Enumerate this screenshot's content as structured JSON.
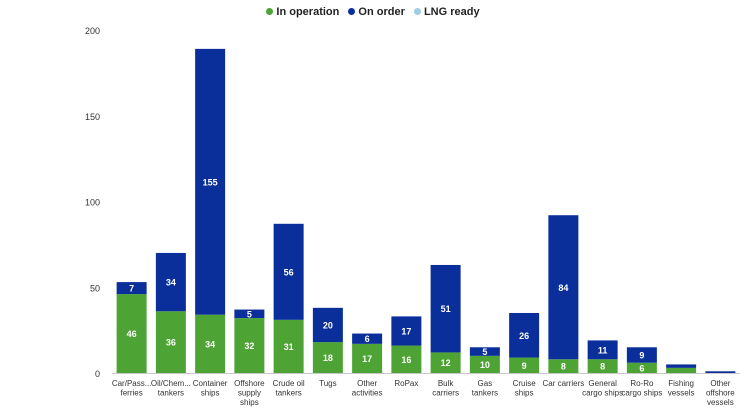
{
  "chart_data": {
    "type": "bar",
    "stacked": true,
    "title": "",
    "xlabel": "",
    "ylabel": "",
    "ylim": [
      0,
      200
    ],
    "yticks": [
      0,
      50,
      100,
      150,
      200
    ],
    "grid": false,
    "legend_position": "top-center",
    "categories": [
      [
        "Car/Pass...",
        "ferries"
      ],
      [
        "Oil/Chem...",
        "tankers"
      ],
      [
        "Container",
        "ships"
      ],
      [
        "Offshore",
        "supply",
        "ships"
      ],
      [
        "Crude oil",
        "tankers"
      ],
      [
        "Tugs"
      ],
      [
        "Other",
        "activities"
      ],
      [
        "RoPax"
      ],
      [
        "Bulk",
        "carriers"
      ],
      [
        "Gas",
        "tankers"
      ],
      [
        "Cruise",
        "ships"
      ],
      [
        "Car carriers"
      ],
      [
        "General",
        "cargo ships"
      ],
      [
        "Ro-Ro",
        "cargo ships"
      ],
      [
        "Fishing",
        "vessels"
      ],
      [
        "Other",
        "offshore",
        "vessels"
      ]
    ],
    "series": [
      {
        "name": "In operation",
        "color": "#4da334",
        "values": [
          46,
          36,
          34,
          32,
          31,
          18,
          17,
          16,
          12,
          10,
          9,
          8,
          8,
          6,
          3,
          0
        ],
        "labels": [
          "46",
          "36",
          "34",
          "32",
          "31",
          "18",
          "17",
          "16",
          "12",
          "10",
          "9",
          "8",
          "8",
          "6",
          "",
          ""
        ]
      },
      {
        "name": "On order",
        "color": "#0a2f9b",
        "values": [
          7,
          34,
          155,
          5,
          56,
          20,
          6,
          17,
          51,
          5,
          26,
          84,
          11,
          9,
          2,
          1
        ],
        "labels": [
          "7",
          "34",
          "155",
          "5",
          "56",
          "20",
          "6",
          "17",
          "51",
          "5",
          "26",
          "84",
          "11",
          "9",
          "",
          ""
        ]
      },
      {
        "name": "LNG ready",
        "color": "#9ecfe8",
        "values": [
          0,
          0,
          0,
          0,
          0,
          0,
          0,
          0,
          0,
          0,
          0,
          0,
          0,
          0,
          0,
          0
        ],
        "labels": [
          "",
          "",
          "",
          "",
          "",
          "",
          "",
          "",
          "",
          "",
          "",
          "",
          "",
          "",
          "",
          ""
        ]
      }
    ]
  }
}
